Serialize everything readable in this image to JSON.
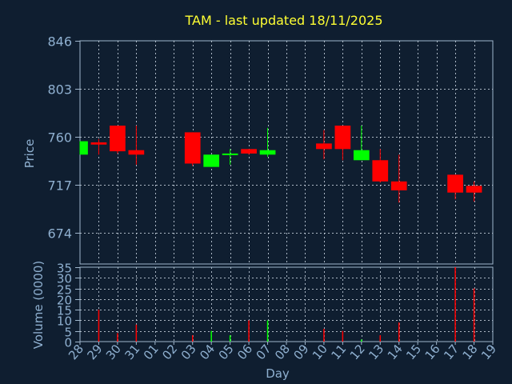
{
  "chart_data": [
    {
      "type": "candlestick",
      "title": "TAM - last updated 18/11/2025",
      "ylabel": "Price",
      "ylim": [
        646,
        846
      ],
      "yticks": [
        674,
        717,
        760,
        803,
        846
      ],
      "colors": {
        "up": "#00ff00",
        "down": "#ff0000"
      },
      "days": [
        {
          "label": "28",
          "open": 744,
          "close": 756,
          "high": 756,
          "low": 744
        },
        {
          "label": "29",
          "open": 755,
          "close": 753,
          "high": 758,
          "low": 744
        },
        {
          "label": "30",
          "open": 770,
          "close": 747,
          "high": 770,
          "low": 745
        },
        {
          "label": "31",
          "open": 748,
          "close": 744,
          "high": 770,
          "low": 735
        },
        {
          "label": "01"
        },
        {
          "label": "02"
        },
        {
          "label": "03",
          "open": 764,
          "close": 736,
          "high": 764,
          "low": 734
        },
        {
          "label": "04",
          "open": 733,
          "close": 744,
          "high": 744,
          "low": 733
        },
        {
          "label": "05",
          "open": 744,
          "close": 745,
          "high": 749,
          "low": 735
        },
        {
          "label": "06",
          "open": 749,
          "close": 745,
          "high": 749,
          "low": 744
        },
        {
          "label": "07",
          "open": 744,
          "close": 748,
          "high": 768,
          "low": 742
        },
        {
          "label": "08"
        },
        {
          "label": "09"
        },
        {
          "label": "10",
          "open": 754,
          "close": 749,
          "high": 766,
          "low": 740
        },
        {
          "label": "11",
          "open": 770,
          "close": 749,
          "high": 770,
          "low": 739
        },
        {
          "label": "12",
          "open": 739,
          "close": 748,
          "high": 770,
          "low": 739
        },
        {
          "label": "13",
          "open": 739,
          "close": 720,
          "high": 749,
          "low": 719
        },
        {
          "label": "14",
          "open": 720,
          "close": 712,
          "high": 744,
          "low": 701
        },
        {
          "label": "15"
        },
        {
          "label": "16"
        },
        {
          "label": "17",
          "open": 726,
          "close": 710,
          "high": 726,
          "low": 704
        },
        {
          "label": "18",
          "open": 716,
          "close": 710,
          "high": 720,
          "low": 702
        },
        {
          "label": "19"
        }
      ]
    },
    {
      "type": "bar",
      "ylabel": "Volume (0000)",
      "xlabel": "Day",
      "ylim": [
        0,
        35
      ],
      "yticks": [
        0,
        5,
        10,
        15,
        20,
        25,
        30,
        35
      ],
      "categories": [
        "28",
        "29",
        "30",
        "31",
        "01",
        "02",
        "03",
        "04",
        "05",
        "06",
        "07",
        "08",
        "09",
        "10",
        "11",
        "12",
        "13",
        "14",
        "15",
        "16",
        "17",
        "18",
        "19"
      ],
      "values": [
        0,
        15,
        4,
        8,
        0,
        0,
        3,
        5,
        3,
        10,
        10,
        0,
        0,
        6,
        5,
        1,
        3,
        9,
        0,
        0,
        35,
        25,
        0
      ],
      "colors": [
        "#ff0000",
        "#ff0000",
        "#ff0000",
        "#ff0000",
        "#ff0000",
        "#ff0000",
        "#ff0000",
        "#00ff00",
        "#00ff00",
        "#ff0000",
        "#00ff00",
        "#ff0000",
        "#ff0000",
        "#ff0000",
        "#ff0000",
        "#00ff00",
        "#ff0000",
        "#ff0000",
        "#ff0000",
        "#ff0000",
        "#ff0000",
        "#ff0000",
        "#ff0000"
      ]
    }
  ]
}
